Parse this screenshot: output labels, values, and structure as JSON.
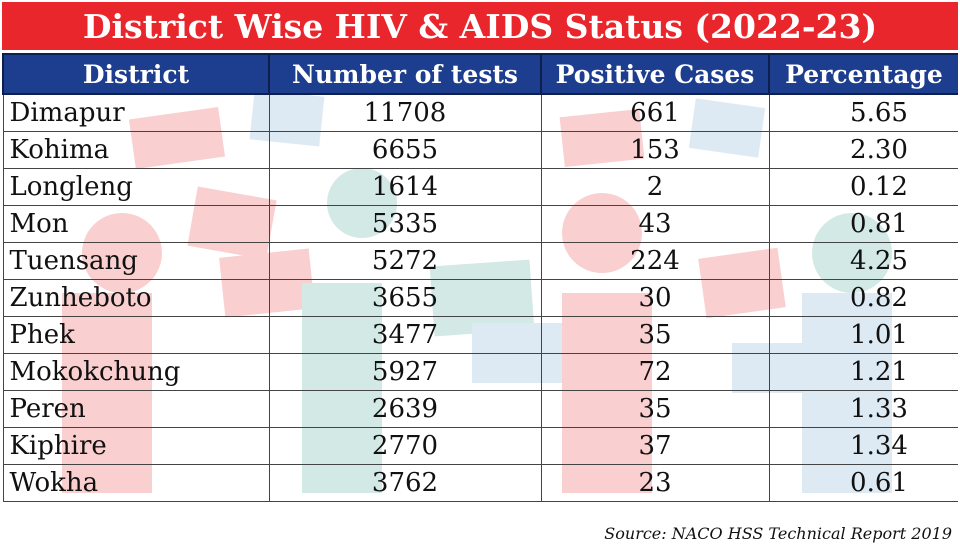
{
  "title": "District Wise HIV & AIDS Status (2022-23)",
  "headers": [
    "District",
    "Number of tests",
    "Positive Cases",
    "Percentage"
  ],
  "rows": [
    {
      "district": "Dimapur",
      "tests": "11708",
      "positive": "661",
      "percentage": "5.65"
    },
    {
      "district": "Kohima",
      "tests": "6655",
      "positive": "153",
      "percentage": "2.30"
    },
    {
      "district": "Longleng",
      "tests": "1614",
      "positive": "2",
      "percentage": "0.12"
    },
    {
      "district": "Mon",
      "tests": "5335",
      "positive": "43",
      "percentage": "0.81"
    },
    {
      "district": "Tuensang",
      "tests": "5272",
      "positive": "224",
      "percentage": "4.25"
    },
    {
      "district": "Zunheboto",
      "tests": "3655",
      "positive": "30",
      "percentage": "0.82"
    },
    {
      "district": "Phek",
      "tests": "3477",
      "positive": "35",
      "percentage": "1.01"
    },
    {
      "district": "Mokokchung",
      "tests": "5927",
      "positive": "72",
      "percentage": "1.21"
    },
    {
      "district": "Peren",
      "tests": "2639",
      "positive": "35",
      "percentage": "1.33"
    },
    {
      "district": "Kiphire",
      "tests": "2770",
      "positive": "37",
      "percentage": "1.34"
    },
    {
      "district": "Wokha",
      "tests": "3762",
      "positive": "23",
      "percentage": "0.61"
    }
  ],
  "source": "Source: NACO HSS Technical Report 2019",
  "colors": {
    "title_background": "#e8262c",
    "header_background": "#1d3d8f",
    "title_text": "#ffffff"
  }
}
